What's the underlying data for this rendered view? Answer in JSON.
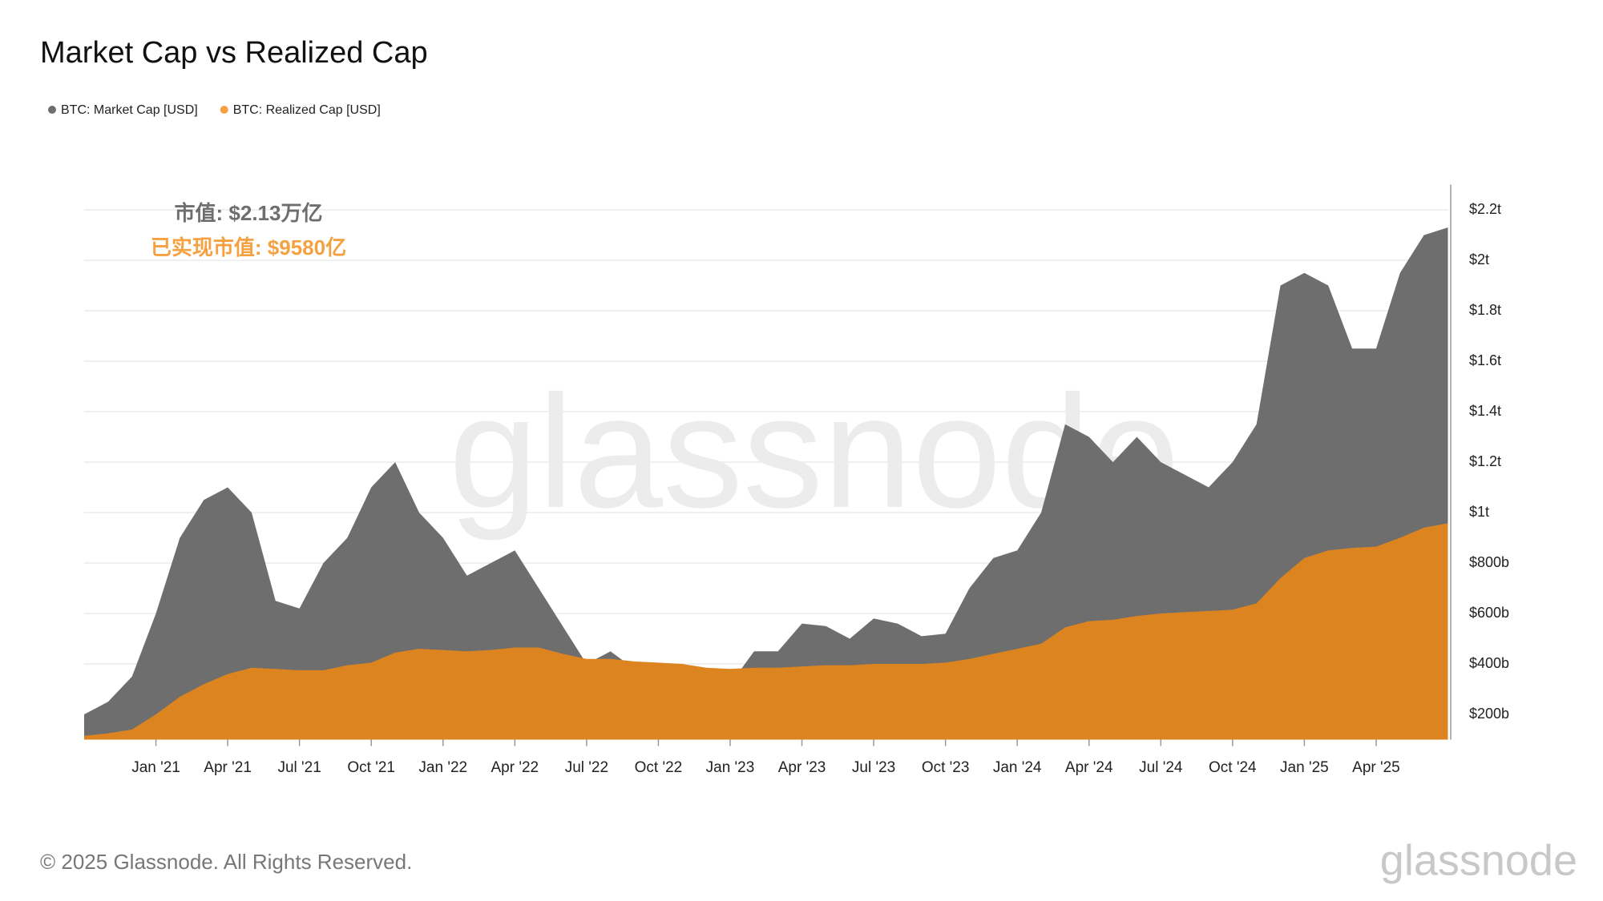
{
  "chart_data": {
    "type": "area",
    "title": "Market Cap vs Realized Cap",
    "annotations": [
      "市值: $2.13万亿",
      "已实现市值: $9580亿"
    ],
    "x": [
      "2020-10",
      "2020-11",
      "2020-12",
      "2021-01",
      "2021-02",
      "2021-03",
      "2021-04",
      "2021-05",
      "2021-06",
      "2021-07",
      "2021-08",
      "2021-09",
      "2021-10",
      "2021-11",
      "2021-12",
      "2022-01",
      "2022-02",
      "2022-03",
      "2022-04",
      "2022-05",
      "2022-06",
      "2022-07",
      "2022-08",
      "2022-09",
      "2022-10",
      "2022-11",
      "2022-12",
      "2023-01",
      "2023-02",
      "2023-03",
      "2023-04",
      "2023-05",
      "2023-06",
      "2023-07",
      "2023-08",
      "2023-09",
      "2023-10",
      "2023-11",
      "2023-12",
      "2024-01",
      "2024-02",
      "2024-03",
      "2024-04",
      "2024-05",
      "2024-06",
      "2024-07",
      "2024-08",
      "2024-09",
      "2024-10",
      "2024-11",
      "2024-12",
      "2025-01",
      "2025-02",
      "2025-03",
      "2025-04",
      "2025-05",
      "2025-06",
      "2025-07"
    ],
    "series": [
      {
        "name": "BTC: Market Cap [USD]",
        "color": "#6e6e6e",
        "values": [
          200,
          250,
          350,
          600,
          900,
          1050,
          1100,
          1000,
          650,
          620,
          800,
          900,
          1100,
          1200,
          1000,
          900,
          750,
          800,
          850,
          700,
          550,
          400,
          450,
          380,
          380,
          380,
          320,
          320,
          450,
          450,
          560,
          550,
          500,
          580,
          560,
          510,
          520,
          700,
          820,
          850,
          1000,
          1350,
          1300,
          1200,
          1300,
          1200,
          1150,
          1100,
          1200,
          1350,
          1900,
          1950,
          1900,
          1650,
          1650,
          1950,
          2100,
          2130
        ]
      },
      {
        "name": "BTC: Realized Cap [USD]",
        "color": "#dc8420",
        "values": [
          115,
          125,
          140,
          200,
          270,
          320,
          360,
          385,
          380,
          375,
          375,
          395,
          405,
          445,
          460,
          455,
          450,
          455,
          465,
          465,
          440,
          420,
          420,
          410,
          405,
          400,
          385,
          380,
          385,
          385,
          390,
          395,
          395,
          400,
          400,
          400,
          405,
          420,
          440,
          460,
          480,
          545,
          570,
          575,
          590,
          600,
          605,
          610,
          615,
          640,
          740,
          820,
          850,
          860,
          865,
          900,
          940,
          958
        ]
      }
    ],
    "xlim": [
      "2020-10",
      "2025-07"
    ],
    "xticks": [
      {
        "value": "2021-01",
        "label": "Jan '21"
      },
      {
        "value": "2021-04",
        "label": "Apr '21"
      },
      {
        "value": "2021-07",
        "label": "Jul '21"
      },
      {
        "value": "2021-10",
        "label": "Oct '21"
      },
      {
        "value": "2022-01",
        "label": "Jan '22"
      },
      {
        "value": "2022-04",
        "label": "Apr '22"
      },
      {
        "value": "2022-07",
        "label": "Jul '22"
      },
      {
        "value": "2022-10",
        "label": "Oct '22"
      },
      {
        "value": "2023-01",
        "label": "Jan '23"
      },
      {
        "value": "2023-04",
        "label": "Apr '23"
      },
      {
        "value": "2023-07",
        "label": "Jul '23"
      },
      {
        "value": "2023-10",
        "label": "Oct '23"
      },
      {
        "value": "2024-01",
        "label": "Jan '24"
      },
      {
        "value": "2024-04",
        "label": "Apr '24"
      },
      {
        "value": "2024-07",
        "label": "Jul '24"
      },
      {
        "value": "2024-10",
        "label": "Oct '24"
      },
      {
        "value": "2025-01",
        "label": "Jan '25"
      },
      {
        "value": "2025-04",
        "label": "Apr '25"
      }
    ],
    "ylim": [
      100,
      2300
    ],
    "yticks": [
      {
        "value": 200,
        "label": "$200b"
      },
      {
        "value": 400,
        "label": "$400b"
      },
      {
        "value": 600,
        "label": "$600b"
      },
      {
        "value": 800,
        "label": "$800b"
      },
      {
        "value": 1000,
        "label": "$1t"
      },
      {
        "value": 1200,
        "label": "$1.2t"
      },
      {
        "value": 1400,
        "label": "$1.4t"
      },
      {
        "value": 1600,
        "label": "$1.6t"
      },
      {
        "value": 1800,
        "label": "$1.8t"
      },
      {
        "value": 2000,
        "label": "$2t"
      },
      {
        "value": 2200,
        "label": "$2.2t"
      }
    ],
    "grid": true,
    "legend": "top-left"
  },
  "footer": {
    "copyright": "© 2025 Glassnode. All Rights Reserved.",
    "logo": "glassnode"
  }
}
